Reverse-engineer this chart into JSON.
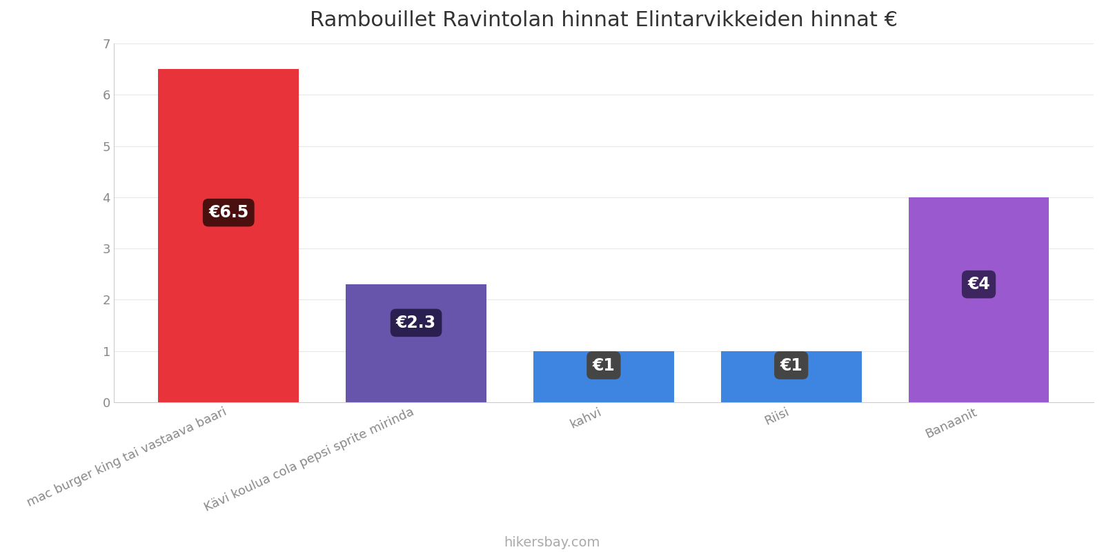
{
  "title": "Rambouillet Ravintolan hinnat Elintarvikkeiden hinnat €",
  "categories": [
    "mac burger king tai vastaava baari",
    "Kävi koulua cola pepsi sprite mirinda",
    "kahvi",
    "Riisi",
    "Banaanit"
  ],
  "values": [
    6.5,
    2.3,
    1.0,
    1.0,
    4.0
  ],
  "bar_colors": [
    "#e8333a",
    "#6655aa",
    "#3d85e0",
    "#3d85e0",
    "#9b59d0"
  ],
  "label_texts": [
    "€6.5",
    "€2.3",
    "€1",
    "€1",
    "€4"
  ],
  "label_bg_colors": [
    "#4a1010",
    "#2a2050",
    "#454545",
    "#454545",
    "#3d2560"
  ],
  "ylim": [
    0,
    7
  ],
  "yticks": [
    0,
    1,
    2,
    3,
    4,
    5,
    6,
    7
  ],
  "footer_text": "hikersbay.com",
  "title_fontsize": 22,
  "label_fontsize": 17,
  "tick_fontsize": 13,
  "footer_fontsize": 14,
  "bg_color": "#ffffff",
  "label_y_positions": [
    3.7,
    1.55,
    0.72,
    0.72,
    2.3
  ],
  "bar_width": 0.75
}
